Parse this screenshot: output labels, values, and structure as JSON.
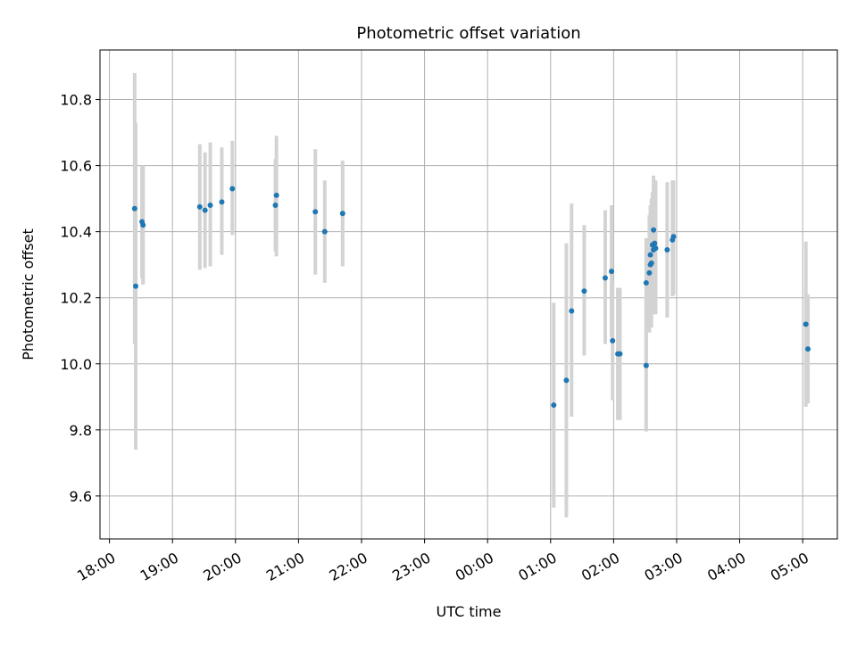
{
  "chart_data": {
    "type": "scatter",
    "title": "Photometric offset variation",
    "xlabel": "UTC time",
    "ylabel": "Photometric offset",
    "x_axis": {
      "kind": "time",
      "range_hours": [
        17.85,
        29.55
      ],
      "ticks": [
        {
          "hour": 18,
          "label": "18:00"
        },
        {
          "hour": 19,
          "label": "19:00"
        },
        {
          "hour": 20,
          "label": "20:00"
        },
        {
          "hour": 21,
          "label": "21:00"
        },
        {
          "hour": 22,
          "label": "22:00"
        },
        {
          "hour": 23,
          "label": "23:00"
        },
        {
          "hour": 24,
          "label": "00:00"
        },
        {
          "hour": 25,
          "label": "01:00"
        },
        {
          "hour": 26,
          "label": "02:00"
        },
        {
          "hour": 27,
          "label": "03:00"
        },
        {
          "hour": 28,
          "label": "04:00"
        },
        {
          "hour": 29,
          "label": "05:00"
        }
      ]
    },
    "ylim": [
      9.47,
      10.95
    ],
    "y_ticks": [
      {
        "value": 9.6,
        "label": "9.6"
      },
      {
        "value": 9.8,
        "label": "9.8"
      },
      {
        "value": 10.0,
        "label": "10.0"
      },
      {
        "value": 10.2,
        "label": "10.2"
      },
      {
        "value": 10.4,
        "label": "10.4"
      },
      {
        "value": 10.6,
        "label": "10.6"
      },
      {
        "value": 10.8,
        "label": "10.8"
      }
    ],
    "grid": true,
    "colors": {
      "points": "#1f77b4",
      "errorbars": "#d3d3d3",
      "grid": "#b0b0b0"
    },
    "points": [
      {
        "t": "18:24",
        "y": 10.47,
        "lo": 10.06,
        "hi": 10.88
      },
      {
        "t": "18:25",
        "y": 10.235,
        "lo": 9.74,
        "hi": 10.73
      },
      {
        "t": "18:31",
        "y": 10.43,
        "lo": 10.26,
        "hi": 10.6
      },
      {
        "t": "18:32",
        "y": 10.42,
        "lo": 10.24,
        "hi": 10.6
      },
      {
        "t": "19:26",
        "y": 10.475,
        "lo": 10.285,
        "hi": 10.665
      },
      {
        "t": "19:31",
        "y": 10.465,
        "lo": 10.29,
        "hi": 10.64
      },
      {
        "t": "19:36",
        "y": 10.48,
        "lo": 10.295,
        "hi": 10.67
      },
      {
        "t": "19:47",
        "y": 10.49,
        "lo": 10.33,
        "hi": 10.655
      },
      {
        "t": "19:57",
        "y": 10.53,
        "lo": 10.39,
        "hi": 10.675
      },
      {
        "t": "20:38",
        "y": 10.48,
        "lo": 10.34,
        "hi": 10.62
      },
      {
        "t": "20:39",
        "y": 10.51,
        "lo": 10.325,
        "hi": 10.69
      },
      {
        "t": "21:16",
        "y": 10.46,
        "lo": 10.27,
        "hi": 10.65
      },
      {
        "t": "21:25",
        "y": 10.4,
        "lo": 10.245,
        "hi": 10.555
      },
      {
        "t": "21:42",
        "y": 10.455,
        "lo": 10.295,
        "hi": 10.615
      },
      {
        "t": "01:03",
        "y": 9.875,
        "lo": 9.565,
        "hi": 10.185
      },
      {
        "t": "01:15",
        "y": 9.95,
        "lo": 9.535,
        "hi": 10.365
      },
      {
        "t": "01:20",
        "y": 10.16,
        "lo": 9.84,
        "hi": 10.485
      },
      {
        "t": "01:32",
        "y": 10.22,
        "lo": 10.025,
        "hi": 10.42
      },
      {
        "t": "01:52",
        "y": 10.26,
        "lo": 10.06,
        "hi": 10.465
      },
      {
        "t": "01:58",
        "y": 10.28,
        "lo": 10.08,
        "hi": 10.48
      },
      {
        "t": "01:59",
        "y": 10.07,
        "lo": 9.89,
        "hi": 10.25
      },
      {
        "t": "02:04",
        "y": 10.03,
        "lo": 9.83,
        "hi": 10.23
      },
      {
        "t": "02:06",
        "y": 10.03,
        "lo": 9.83,
        "hi": 10.23
      },
      {
        "t": "02:31",
        "y": 9.995,
        "lo": 9.795,
        "hi": 10.195
      },
      {
        "t": "02:31",
        "y": 10.245,
        "lo": 10.005,
        "hi": 10.38
      },
      {
        "t": "02:34",
        "y": 10.275,
        "lo": 10.095,
        "hi": 10.45
      },
      {
        "t": "02:35",
        "y": 10.3,
        "lo": 10.13,
        "hi": 10.47
      },
      {
        "t": "02:35",
        "y": 10.33,
        "lo": 10.17,
        "hi": 10.48
      },
      {
        "t": "02:36",
        "y": 10.305,
        "lo": 10.11,
        "hi": 10.5
      },
      {
        "t": "02:37",
        "y": 10.36,
        "lo": 10.2,
        "hi": 10.52
      },
      {
        "t": "02:38",
        "y": 10.405,
        "lo": 10.24,
        "hi": 10.57
      },
      {
        "t": "02:38",
        "y": 10.345,
        "lo": 10.15,
        "hi": 10.54
      },
      {
        "t": "02:39",
        "y": 10.365,
        "lo": 10.21,
        "hi": 10.525
      },
      {
        "t": "02:40",
        "y": 10.35,
        "lo": 10.15,
        "hi": 10.555
      },
      {
        "t": "02:51",
        "y": 10.345,
        "lo": 10.14,
        "hi": 10.55
      },
      {
        "t": "02:56",
        "y": 10.375,
        "lo": 10.205,
        "hi": 10.555
      },
      {
        "t": "02:57",
        "y": 10.385,
        "lo": 10.21,
        "hi": 10.555
      },
      {
        "t": "05:03",
        "y": 10.12,
        "lo": 9.87,
        "hi": 10.37
      },
      {
        "t": "05:05",
        "y": 10.045,
        "lo": 9.88,
        "hi": 10.21
      }
    ]
  }
}
